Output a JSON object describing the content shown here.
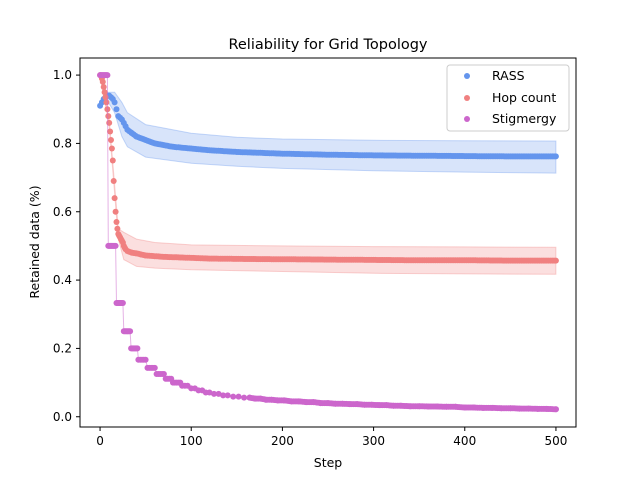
{
  "chart_data": {
    "type": "scatter",
    "title": "Reliability for Grid Topology",
    "xlabel": "Step",
    "ylabel": "Retained data (%)",
    "xlim": [
      -22,
      522
    ],
    "ylim": [
      -0.03,
      1.05
    ],
    "xticks": [
      "0",
      "100",
      "200",
      "300",
      "400",
      "500"
    ],
    "yticks": [
      "0.0",
      "0.2",
      "0.4",
      "0.6",
      "0.8",
      "1.0"
    ],
    "grid": false,
    "legend_position": "top-right",
    "series": [
      {
        "name": "RASS",
        "color": "#6495ED",
        "band": true,
        "points": [
          [
            0,
            0.91
          ],
          [
            2,
            0.92
          ],
          [
            4,
            0.93
          ],
          [
            6,
            0.935
          ],
          [
            8,
            0.94
          ],
          [
            10,
            0.94
          ],
          [
            12,
            0.935
          ],
          [
            14,
            0.93
          ],
          [
            16,
            0.92
          ],
          [
            18,
            0.9
          ],
          [
            20,
            0.88
          ],
          [
            22,
            0.875
          ],
          [
            24,
            0.87
          ],
          [
            26,
            0.86
          ],
          [
            28,
            0.85
          ],
          [
            30,
            0.84
          ],
          [
            35,
            0.83
          ],
          [
            40,
            0.82
          ],
          [
            50,
            0.81
          ],
          [
            60,
            0.8
          ],
          [
            70,
            0.795
          ],
          [
            80,
            0.79
          ],
          [
            100,
            0.785
          ],
          [
            120,
            0.78
          ],
          [
            150,
            0.775
          ],
          [
            200,
            0.77
          ],
          [
            250,
            0.767
          ],
          [
            300,
            0.765
          ],
          [
            350,
            0.764
          ],
          [
            400,
            0.763
          ],
          [
            450,
            0.762
          ],
          [
            500,
            0.762
          ]
        ],
        "band_lower": [
          [
            0,
            0.91
          ],
          [
            8,
            0.925
          ],
          [
            16,
            0.89
          ],
          [
            24,
            0.82
          ],
          [
            30,
            0.79
          ],
          [
            50,
            0.76
          ],
          [
            100,
            0.742
          ],
          [
            150,
            0.733
          ],
          [
            200,
            0.727
          ],
          [
            300,
            0.72
          ],
          [
            400,
            0.716
          ],
          [
            500,
            0.713
          ]
        ],
        "band_upper": [
          [
            0,
            0.915
          ],
          [
            8,
            0.95
          ],
          [
            16,
            0.95
          ],
          [
            24,
            0.92
          ],
          [
            30,
            0.89
          ],
          [
            50,
            0.855
          ],
          [
            100,
            0.83
          ],
          [
            150,
            0.818
          ],
          [
            200,
            0.813
          ],
          [
            300,
            0.809
          ],
          [
            400,
            0.808
          ],
          [
            500,
            0.807
          ]
        ]
      },
      {
        "name": "Hop count",
        "color": "#F08080",
        "band": true,
        "points": [
          [
            0,
            1.0
          ],
          [
            2,
            0.99
          ],
          [
            3,
            0.98
          ],
          [
            4,
            0.965
          ],
          [
            5,
            0.95
          ],
          [
            6,
            0.935
          ],
          [
            7,
            0.92
          ],
          [
            8,
            0.9
          ],
          [
            9,
            0.88
          ],
          [
            10,
            0.86
          ],
          [
            11,
            0.835
          ],
          [
            12,
            0.81
          ],
          [
            13,
            0.785
          ],
          [
            14,
            0.75
          ],
          [
            15,
            0.69
          ],
          [
            16,
            0.64
          ],
          [
            17,
            0.6
          ],
          [
            18,
            0.57
          ],
          [
            19,
            0.55
          ],
          [
            20,
            0.535
          ],
          [
            21,
            0.53
          ],
          [
            22,
            0.525
          ],
          [
            23,
            0.52
          ],
          [
            24,
            0.515
          ],
          [
            25,
            0.51
          ],
          [
            26,
            0.5
          ],
          [
            27,
            0.495
          ],
          [
            28,
            0.49
          ],
          [
            30,
            0.485
          ],
          [
            35,
            0.48
          ],
          [
            40,
            0.478
          ],
          [
            45,
            0.475
          ],
          [
            50,
            0.472
          ],
          [
            60,
            0.47
          ],
          [
            70,
            0.468
          ],
          [
            80,
            0.467
          ],
          [
            100,
            0.465
          ],
          [
            120,
            0.463
          ],
          [
            150,
            0.462
          ],
          [
            200,
            0.461
          ],
          [
            250,
            0.46
          ],
          [
            300,
            0.459
          ],
          [
            350,
            0.458
          ],
          [
            400,
            0.458
          ],
          [
            450,
            0.457
          ],
          [
            500,
            0.457
          ]
        ],
        "band_lower": [
          [
            0,
            1.0
          ],
          [
            10,
            0.85
          ],
          [
            20,
            0.52
          ],
          [
            26,
            0.46
          ],
          [
            40,
            0.44
          ],
          [
            60,
            0.435
          ],
          [
            100,
            0.43
          ],
          [
            200,
            0.425
          ],
          [
            300,
            0.42
          ],
          [
            400,
            0.418
          ],
          [
            500,
            0.417
          ]
        ],
        "band_upper": [
          [
            0,
            1.0
          ],
          [
            10,
            0.87
          ],
          [
            20,
            0.55
          ],
          [
            26,
            0.54
          ],
          [
            40,
            0.52
          ],
          [
            60,
            0.51
          ],
          [
            100,
            0.503
          ],
          [
            200,
            0.5
          ],
          [
            300,
            0.498
          ],
          [
            400,
            0.497
          ],
          [
            500,
            0.496
          ]
        ]
      },
      {
        "name": "Stigmergy",
        "color": "#CC66CC",
        "band": false,
        "points": [
          [
            0,
            1.0
          ],
          [
            1,
            1.0
          ],
          [
            2,
            1.0
          ],
          [
            3,
            1.0
          ],
          [
            4,
            1.0
          ],
          [
            5,
            1.0
          ],
          [
            6,
            1.0
          ],
          [
            7,
            1.0
          ],
          [
            8,
            1.0
          ],
          [
            9,
            0.5
          ],
          [
            10,
            0.5
          ],
          [
            11,
            0.5
          ],
          [
            12,
            0.5
          ],
          [
            13,
            0.5
          ],
          [
            14,
            0.5
          ],
          [
            15,
            0.5
          ],
          [
            16,
            0.5
          ],
          [
            17,
            0.5
          ],
          [
            18,
            0.333
          ],
          [
            19,
            0.333
          ],
          [
            20,
            0.333
          ],
          [
            21,
            0.333
          ],
          [
            22,
            0.333
          ],
          [
            23,
            0.333
          ],
          [
            24,
            0.333
          ],
          [
            25,
            0.333
          ],
          [
            26,
            0.25
          ],
          [
            27,
            0.25
          ],
          [
            28,
            0.25
          ],
          [
            29,
            0.25
          ],
          [
            30,
            0.25
          ],
          [
            31,
            0.25
          ],
          [
            32,
            0.25
          ],
          [
            33,
            0.25
          ],
          [
            34,
            0.2
          ],
          [
            35,
            0.2
          ],
          [
            36,
            0.2
          ],
          [
            37,
            0.2
          ],
          [
            38,
            0.2
          ],
          [
            39,
            0.2
          ],
          [
            40,
            0.2
          ],
          [
            41,
            0.2
          ],
          [
            42,
            0.167
          ],
          [
            44,
            0.167
          ],
          [
            46,
            0.167
          ],
          [
            48,
            0.167
          ],
          [
            50,
            0.167
          ],
          [
            52,
            0.143
          ],
          [
            54,
            0.143
          ],
          [
            56,
            0.143
          ],
          [
            58,
            0.143
          ],
          [
            60,
            0.143
          ],
          [
            62,
            0.125
          ],
          [
            64,
            0.125
          ],
          [
            66,
            0.125
          ],
          [
            68,
            0.125
          ],
          [
            70,
            0.125
          ],
          [
            72,
            0.111
          ],
          [
            74,
            0.111
          ],
          [
            76,
            0.111
          ],
          [
            78,
            0.111
          ],
          [
            80,
            0.1
          ],
          [
            82,
            0.1
          ],
          [
            84,
            0.1
          ],
          [
            86,
            0.1
          ],
          [
            88,
            0.1
          ],
          [
            90,
            0.091
          ],
          [
            93,
            0.091
          ],
          [
            96,
            0.091
          ],
          [
            100,
            0.083
          ],
          [
            104,
            0.083
          ],
          [
            108,
            0.077
          ],
          [
            112,
            0.077
          ],
          [
            116,
            0.071
          ],
          [
            120,
            0.071
          ],
          [
            125,
            0.067
          ],
          [
            130,
            0.067
          ],
          [
            135,
            0.0625
          ],
          [
            140,
            0.0625
          ],
          [
            146,
            0.059
          ],
          [
            152,
            0.059
          ],
          [
            158,
            0.056
          ],
          [
            164,
            0.056
          ],
          [
            170,
            0.053
          ],
          [
            176,
            0.053
          ],
          [
            182,
            0.05
          ],
          [
            188,
            0.05
          ],
          [
            195,
            0.048
          ],
          [
            202,
            0.048
          ],
          [
            210,
            0.045
          ],
          [
            218,
            0.045
          ],
          [
            226,
            0.043
          ],
          [
            234,
            0.043
          ],
          [
            242,
            0.04
          ],
          [
            250,
            0.04
          ],
          [
            258,
            0.038
          ],
          [
            266,
            0.038
          ],
          [
            274,
            0.037
          ],
          [
            282,
            0.037
          ],
          [
            290,
            0.035
          ],
          [
            298,
            0.035
          ],
          [
            306,
            0.034
          ],
          [
            314,
            0.034
          ],
          [
            322,
            0.032
          ],
          [
            330,
            0.032
          ],
          [
            340,
            0.031
          ],
          [
            350,
            0.031
          ],
          [
            360,
            0.03
          ],
          [
            370,
            0.03
          ],
          [
            380,
            0.029
          ],
          [
            390,
            0.029
          ],
          [
            400,
            0.027
          ],
          [
            410,
            0.027
          ],
          [
            420,
            0.026
          ],
          [
            430,
            0.026
          ],
          [
            440,
            0.025
          ],
          [
            450,
            0.025
          ],
          [
            460,
            0.024
          ],
          [
            470,
            0.024
          ],
          [
            480,
            0.023
          ],
          [
            490,
            0.023
          ],
          [
            500,
            0.022
          ]
        ]
      }
    ]
  }
}
